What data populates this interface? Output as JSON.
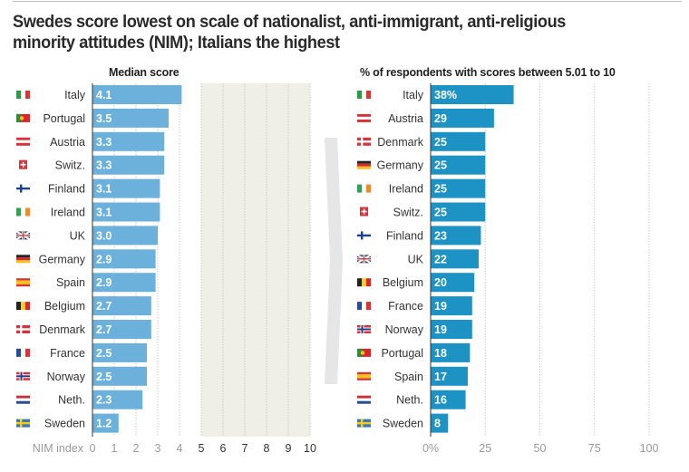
{
  "title": "Swedes score lowest on scale of nationalist, anti-immigrant, anti-religious minority attitudes (NIM); Italians the highest",
  "chart_data": [
    {
      "type": "bar",
      "orientation": "horizontal",
      "title": "Median score",
      "xlabel": "NIM index",
      "xlim": [
        0,
        10
      ],
      "xticks": [
        "0",
        "1",
        "2",
        "3",
        "4",
        "5",
        "6",
        "7",
        "8",
        "9",
        "10"
      ],
      "shaded_range": [
        5,
        10
      ],
      "grid": true,
      "color": "#6cb0dc",
      "categories": [
        "Italy",
        "Portugal",
        "Austria",
        "Switz.",
        "Finland",
        "Ireland",
        "UK",
        "Germany",
        "Spain",
        "Belgium",
        "Denmark",
        "France",
        "Norway",
        "Neth.",
        "Sweden"
      ],
      "values": [
        4.1,
        3.5,
        3.3,
        3.3,
        3.1,
        3.1,
        3.0,
        2.9,
        2.9,
        2.7,
        2.7,
        2.5,
        2.5,
        2.3,
        1.2
      ],
      "labels": [
        "4.1",
        "3.5",
        "3.3",
        "3.3",
        "3.1",
        "3.1",
        "3.0",
        "2.9",
        "2.9",
        "2.7",
        "2.7",
        "2.5",
        "2.5",
        "2.3",
        "1.2"
      ]
    },
    {
      "type": "bar",
      "orientation": "horizontal",
      "title": "% of respondents with scores between 5.01 to 10",
      "xlabel": "",
      "xlim": [
        0,
        100
      ],
      "xticks": [
        "0%",
        "25",
        "50",
        "75",
        "100"
      ],
      "grid": true,
      "color": "#1c93c4",
      "categories": [
        "Italy",
        "Austria",
        "Denmark",
        "Germany",
        "Ireland",
        "Switz.",
        "Finland",
        "UK",
        "Belgium",
        "France",
        "Norway",
        "Portugal",
        "Spain",
        "Neth.",
        "Sweden"
      ],
      "values": [
        38,
        29,
        25,
        25,
        25,
        25,
        23,
        22,
        20,
        19,
        19,
        18,
        17,
        16,
        8
      ],
      "labels": [
        "38%",
        "29",
        "25",
        "25",
        "25",
        "25",
        "23",
        "22",
        "20",
        "19",
        "19",
        "18",
        "17",
        "16",
        "8"
      ]
    }
  ],
  "flags": {
    "Italy": {
      "kind": "v3",
      "colors": [
        "#2e9a48",
        "#ffffff",
        "#d23a3a"
      ]
    },
    "Portugal": {
      "kind": "pt",
      "colors": [
        "#2e8a3e",
        "#d8282a",
        "#f0c420"
      ]
    },
    "Austria": {
      "kind": "h3",
      "colors": [
        "#d8323a",
        "#ffffff",
        "#d8323a"
      ]
    },
    "Switz.": {
      "kind": "ch",
      "colors": [
        "#d8323a",
        "#ffffff"
      ]
    },
    "Finland": {
      "kind": "nordic",
      "colors": [
        "#ffffff",
        "#1f3f8f"
      ]
    },
    "Ireland": {
      "kind": "v3",
      "colors": [
        "#35a055",
        "#ffffff",
        "#f08a30"
      ]
    },
    "UK": {
      "kind": "uk",
      "colors": [
        "#2a3f85",
        "#ffffff",
        "#d23a3a"
      ]
    },
    "Germany": {
      "kind": "h3",
      "colors": [
        "#222222",
        "#d8282a",
        "#f2c020"
      ]
    },
    "Spain": {
      "kind": "es",
      "colors": [
        "#d8323a",
        "#f2c020",
        "#d8323a"
      ]
    },
    "Belgium": {
      "kind": "v3",
      "colors": [
        "#222222",
        "#f2d020",
        "#d8282a"
      ]
    },
    "Denmark": {
      "kind": "nordic",
      "colors": [
        "#d8323a",
        "#ffffff"
      ]
    },
    "France": {
      "kind": "v3",
      "colors": [
        "#2a4aa0",
        "#ffffff",
        "#d8323a"
      ]
    },
    "Norway": {
      "kind": "nordic2",
      "colors": [
        "#d8323a",
        "#ffffff",
        "#2a3f85"
      ]
    },
    "Neth.": {
      "kind": "h3",
      "colors": [
        "#c8303a",
        "#ffffff",
        "#2a4a95"
      ]
    },
    "Sweden": {
      "kind": "nordic",
      "colors": [
        "#3a78b8",
        "#f2cc20"
      ]
    }
  }
}
